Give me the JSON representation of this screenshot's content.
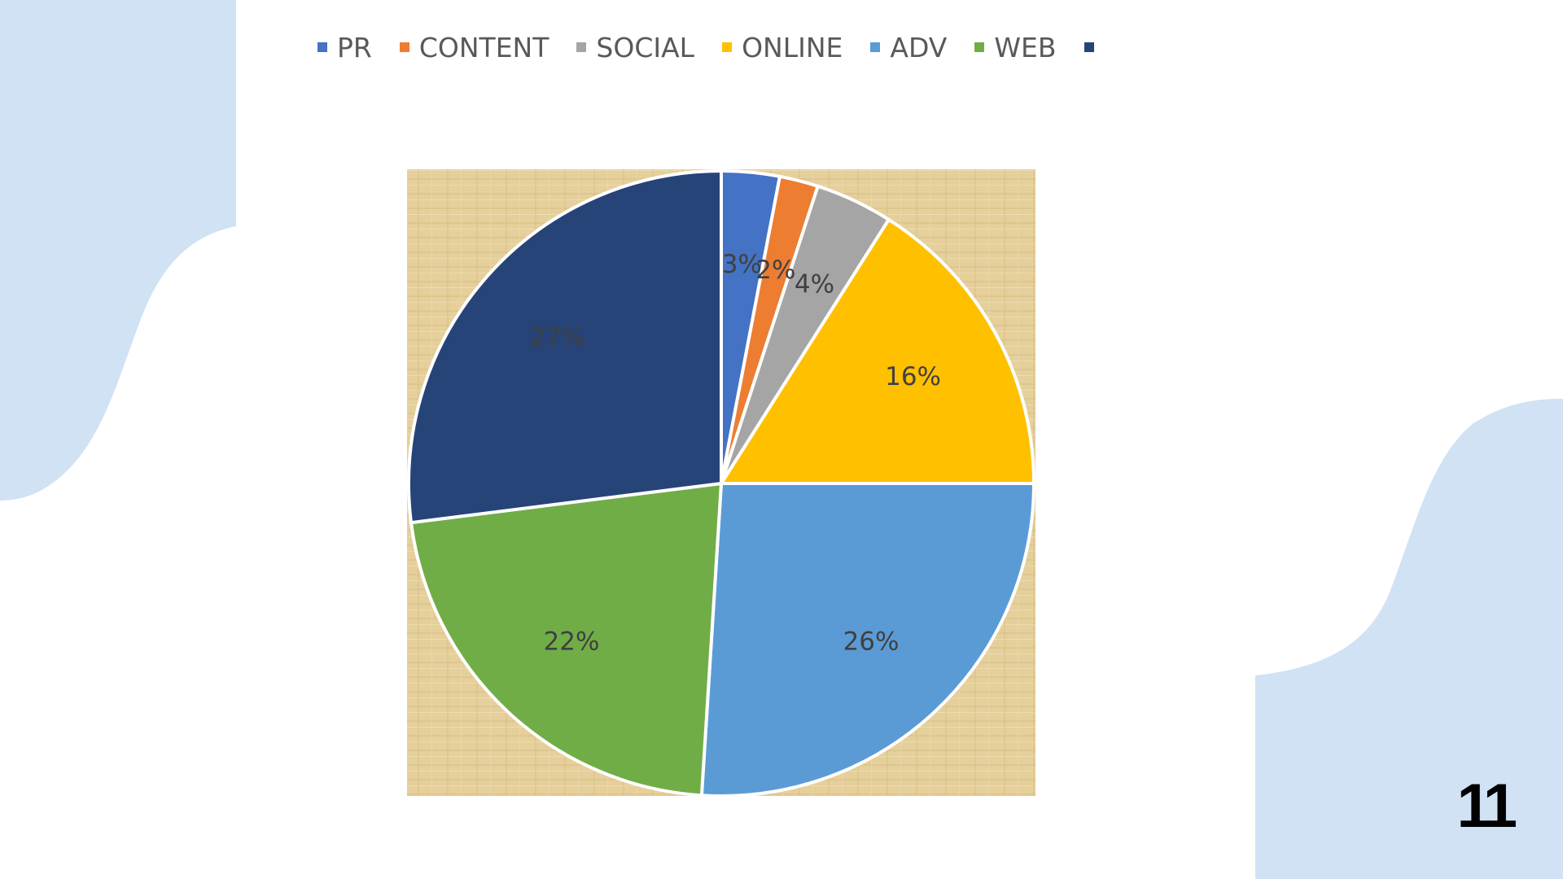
{
  "slide": {
    "page_number": "11",
    "background_color": "#ffffff",
    "decor_color": "#d0e2f4"
  },
  "chart_data": {
    "type": "pie",
    "title": "",
    "categories": [
      "PR",
      "CONTENT",
      "SOCIAL",
      "ONLINE",
      "ADV",
      "WEB",
      ""
    ],
    "values": [
      3,
      2,
      4,
      16,
      26,
      22,
      27
    ],
    "data_labels": [
      "3%",
      "2%",
      "4%",
      "16%",
      "26%",
      "22%",
      "27%"
    ],
    "colors": [
      "#4472c4",
      "#ed7d31",
      "#a5a5a5",
      "#ffc000",
      "#5b9bd5",
      "#70ad47",
      "#264478"
    ],
    "legend_position": "top",
    "plot_background": "parchment texture",
    "start_angle_deg": 0,
    "direction": "clockwise"
  }
}
